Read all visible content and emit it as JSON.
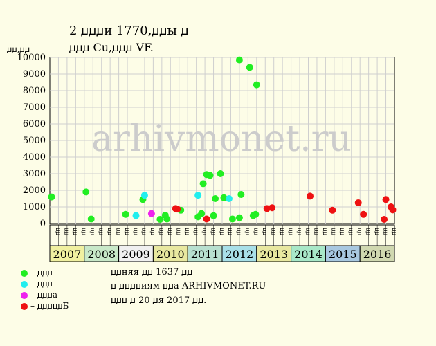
{
  "header": {
    "title_line1": "2 ꙡꙡꙡи 1770,ꙡꙡы ꙡ",
    "title_line2": "ꙡꙡꙡ Cu,ꙡꙡꙡ VF.",
    "unit": "ꙡꙡ,ꙡꙡ"
  },
  "watermark": "arhivmonet.ru",
  "chart_data": {
    "type": "scatter",
    "ylim": [
      0,
      10000
    ],
    "y_ticks": [
      "0",
      "1000",
      "2000",
      "3000",
      "4000",
      "5000",
      "6000",
      "7000",
      "8000",
      "9000",
      "10000"
    ],
    "quarter_labels": [
      "ꙡꙡ",
      "ꙡꙡ",
      "ꙡꙡ",
      "ꙡꙡ"
    ],
    "years": [
      {
        "label": "2007",
        "color": "#f0f0a0"
      },
      {
        "label": "2008",
        "color": "#c8e8c8"
      },
      {
        "label": "2009",
        "color": "#f0f0f0"
      },
      {
        "label": "2010",
        "color": "#e8e8a0"
      },
      {
        "label": "2011",
        "color": "#b8e0d0"
      },
      {
        "label": "2012",
        "color": "#a8e0e8"
      },
      {
        "label": "2013",
        "color": "#e8e8a0"
      },
      {
        "label": "2014",
        "color": "#a8e8c8"
      },
      {
        "label": "2015",
        "color": "#a8c8e0"
      },
      {
        "label": "2016",
        "color": "#d0d8b0"
      }
    ],
    "series": [
      {
        "color": "#22ee22",
        "points": [
          [
            2007.05,
            1600
          ],
          [
            2008.05,
            1900
          ],
          [
            2008.2,
            270
          ],
          [
            2009.2,
            550
          ],
          [
            2009.7,
            1450
          ],
          [
            2010.2,
            250
          ],
          [
            2010.35,
            500
          ],
          [
            2010.4,
            270
          ],
          [
            2010.8,
            800
          ],
          [
            2011.3,
            400
          ],
          [
            2011.4,
            600
          ],
          [
            2011.45,
            2400
          ],
          [
            2011.55,
            2950
          ],
          [
            2011.65,
            2900
          ],
          [
            2011.75,
            470
          ],
          [
            2011.8,
            1500
          ],
          [
            2011.95,
            3000
          ],
          [
            2012.05,
            1550
          ],
          [
            2012.3,
            270
          ],
          [
            2012.5,
            9850
          ],
          [
            2012.5,
            350
          ],
          [
            2012.55,
            1750
          ],
          [
            2012.8,
            9400
          ],
          [
            2012.9,
            480
          ],
          [
            2013.0,
            8350
          ],
          [
            2012.97,
            550
          ]
        ]
      },
      {
        "color": "#22eeee",
        "points": [
          [
            2009.5,
            480
          ],
          [
            2009.75,
            1700
          ],
          [
            2011.3,
            1700
          ],
          [
            2012.2,
            1500
          ]
        ]
      },
      {
        "color": "#ee22ee",
        "points": [
          [
            2009.95,
            600
          ]
        ]
      },
      {
        "color": "#ee1111",
        "points": [
          [
            2010.65,
            900
          ],
          [
            2010.7,
            870
          ],
          [
            2011.55,
            270
          ],
          [
            2013.3,
            900
          ],
          [
            2013.45,
            950
          ],
          [
            2014.55,
            1650
          ],
          [
            2015.2,
            800
          ],
          [
            2015.95,
            1250
          ],
          [
            2016.1,
            550
          ],
          [
            2016.7,
            250
          ],
          [
            2016.75,
            1450
          ],
          [
            2016.9,
            1000
          ],
          [
            2016.95,
            820
          ]
        ]
      }
    ]
  },
  "legend": [
    {
      "label": "– ꙡꙡꙡ",
      "color": "#22ee22"
    },
    {
      "label": "– ꙡꙡꙡ",
      "color": "#22eeee"
    },
    {
      "label": "– ꙡꙡꙡa",
      "color": "#ee22ee"
    },
    {
      "label": "– ꙡꙡꙡꙡꙡБ",
      "color": "#ee1111"
    }
  ],
  "info": {
    "line1": "ꙡꙡняя ꙡꙡ 1637 ꙡꙡ",
    "line2": "ꙡ ꙡꙡꙡꙡиям ꙡꙡa ARHIVMONET.RU",
    "line3": "ꙡꙡꙡ ꙡ 20 ꙡя 2017 ꙡꙡ."
  }
}
